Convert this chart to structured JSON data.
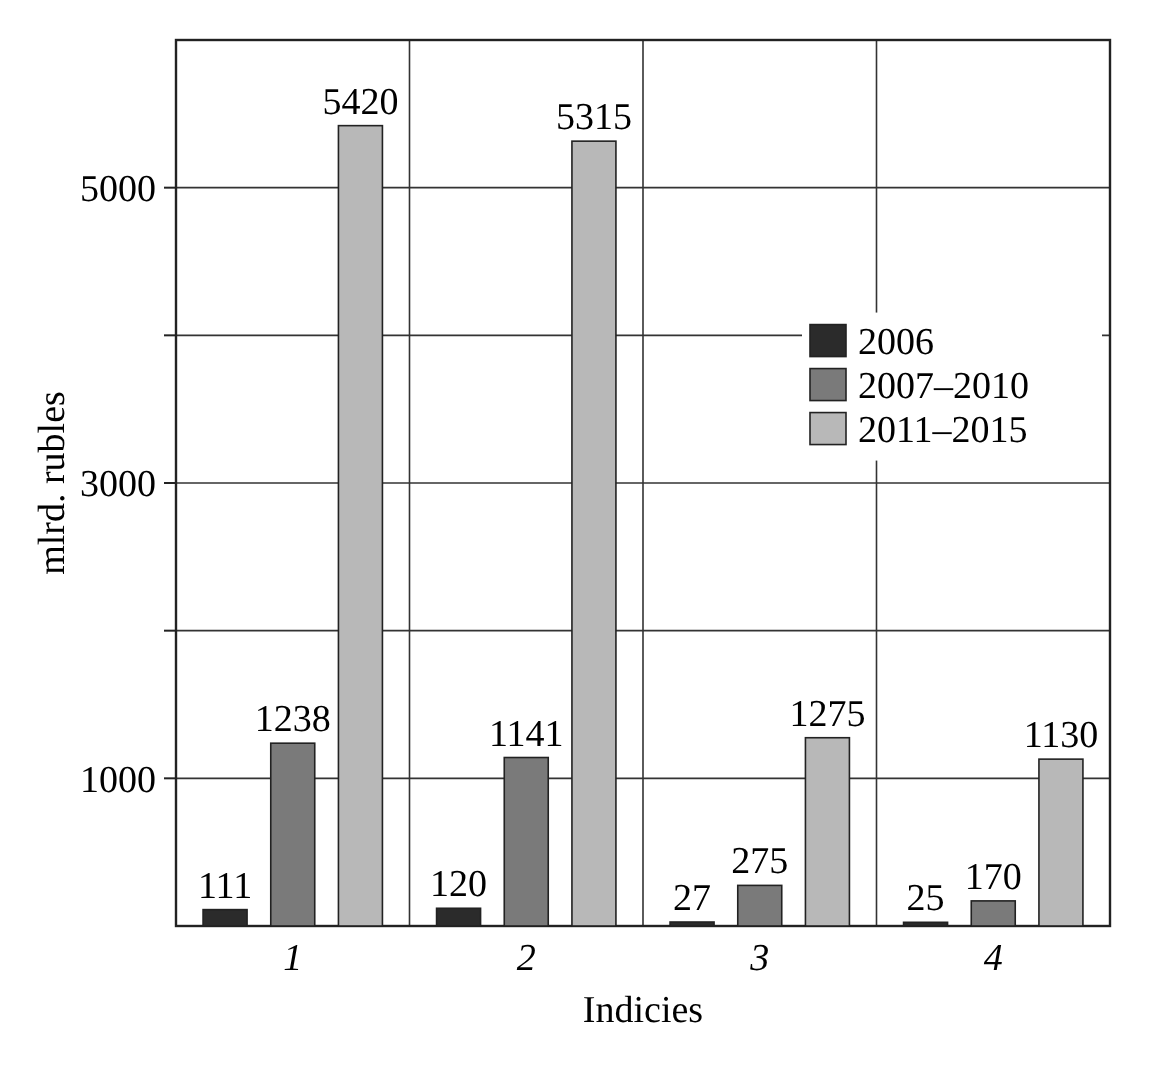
{
  "chart_data": {
    "type": "bar",
    "xlabel": "Indicies",
    "ylabel": "mlrd. rubles",
    "categories": [
      "1",
      "2",
      "3",
      "4"
    ],
    "series": [
      {
        "name": "2006",
        "color": "#2b2b2b",
        "values": [
          111,
          120,
          27,
          25
        ]
      },
      {
        "name": "2007–2010",
        "color": "#7a7a7a",
        "values": [
          1238,
          1141,
          275,
          170
        ]
      },
      {
        "name": "2011–2015",
        "color": "#b8b8b8",
        "values": [
          5420,
          5315,
          1275,
          1130
        ]
      }
    ],
    "ylim": [
      0,
      6000
    ],
    "yticks": [
      {
        "value": 1000,
        "label": "1000"
      },
      {
        "value": 2000,
        "label": null
      },
      {
        "value": 3000,
        "label": "3000"
      },
      {
        "value": 4000,
        "label": null
      },
      {
        "value": 5000,
        "label": "5000"
      }
    ],
    "grid": true,
    "legend": "right",
    "data_labels": true
  }
}
